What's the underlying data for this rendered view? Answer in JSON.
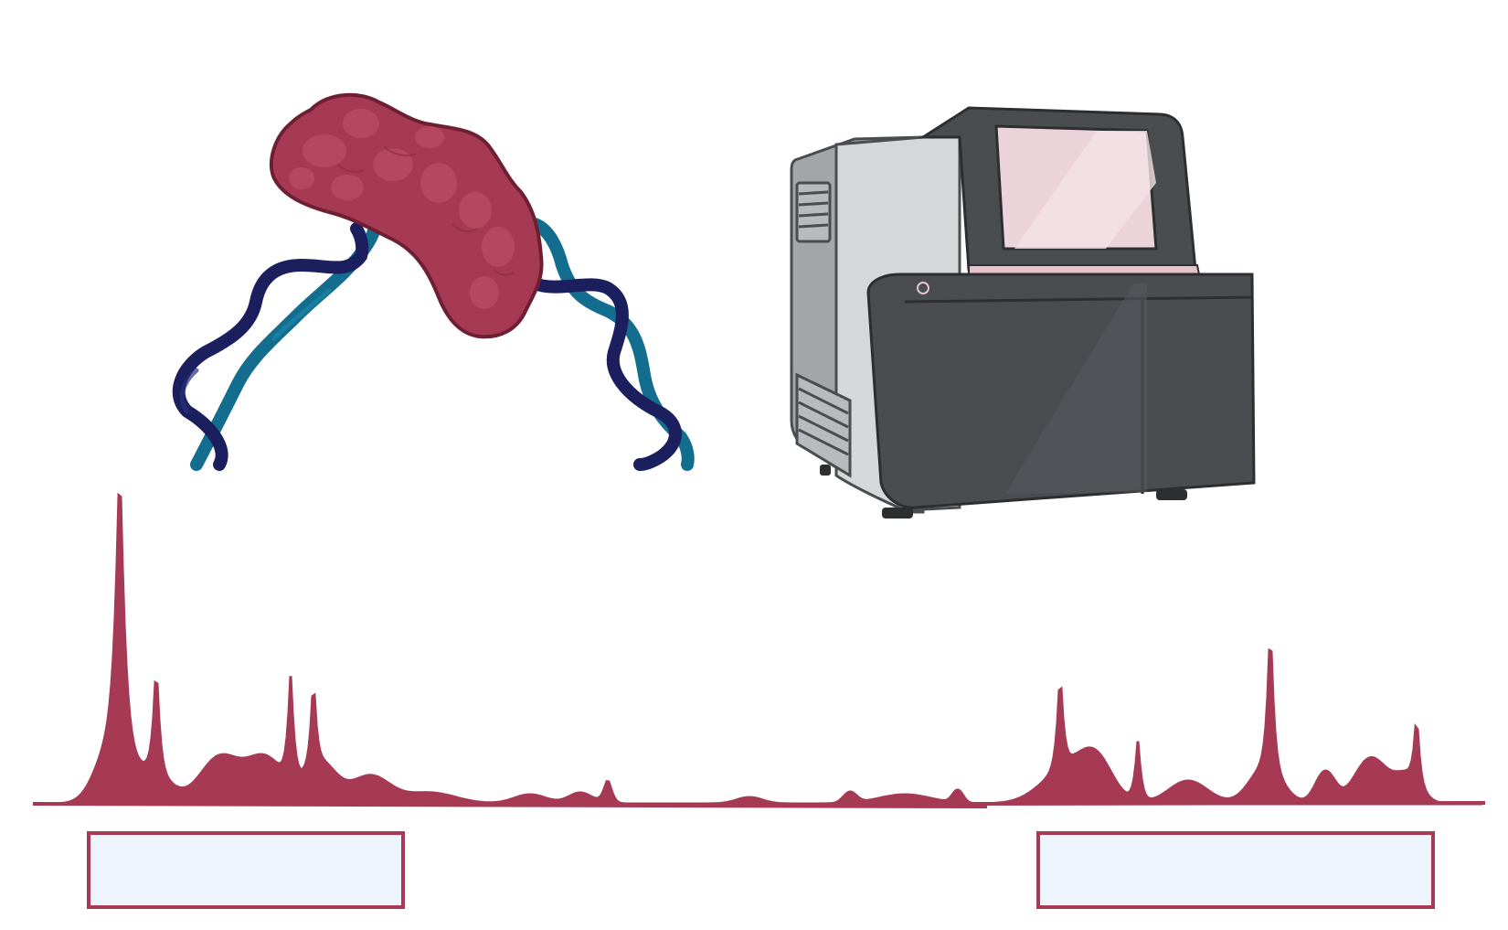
{
  "colors": {
    "background": "#ffffff",
    "peak_fill": "#a63a55",
    "peak_stroke": "#a63a55",
    "protein_fill": "#a63a55",
    "protein_blob": "#b94a63",
    "protein_outline": "#6e1f33",
    "dna_strand_dark": "#1b1f5e",
    "dna_strand_light": "#136d8e",
    "sequencer_body_dark": "#4a4d50",
    "sequencer_side_light": "#d6d7d9",
    "sequencer_side_mid": "#a3a6a8",
    "sequencer_screen": "#ecd3d9",
    "box_fill": "#eef4fb",
    "box_stroke": "#a63a55"
  },
  "icons": {
    "protein": "protein-blob-icon",
    "dna": "dna-double-helix-icon",
    "sequencer": "sequencing-machine-icon"
  },
  "boxes": [
    {
      "label": ""
    },
    {
      "label": ""
    }
  ]
}
